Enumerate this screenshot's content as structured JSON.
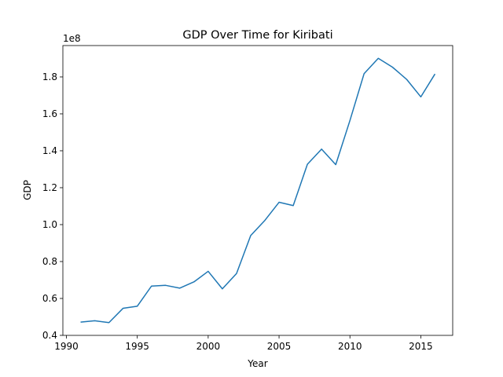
{
  "chart_data": {
    "type": "line",
    "title": "GDP Over Time for Kiribati",
    "xlabel": "Year",
    "ylabel": "GDP",
    "y_offset_label": "1e8",
    "xlim": [
      1989.75,
      2017.25
    ],
    "ylim": [
      0.4,
      1.97
    ],
    "x_ticks": [
      1990,
      1995,
      2000,
      2005,
      2010,
      2015
    ],
    "x_tick_labels": [
      "1990",
      "1995",
      "2000",
      "2005",
      "2010",
      "2015"
    ],
    "y_ticks": [
      0.4,
      0.6,
      0.8,
      1.0,
      1.2,
      1.4,
      1.6,
      1.8
    ],
    "y_tick_labels": [
      "0.4",
      "0.6",
      "0.8",
      "1.0",
      "1.2",
      "1.4",
      "1.6",
      "1.8"
    ],
    "grid": false,
    "series": [
      {
        "color": "#1f77b4",
        "x": [
          1991,
          1992,
          1993,
          1994,
          1995,
          1996,
          1997,
          1998,
          1999,
          2000,
          2001,
          2002,
          2003,
          2004,
          2005,
          2006,
          2007,
          2008,
          2009,
          2010,
          2011,
          2012,
          2013,
          2014,
          2015,
          2016
        ],
        "y": [
          0.472,
          0.479,
          0.469,
          0.547,
          0.558,
          0.667,
          0.671,
          0.656,
          0.69,
          0.747,
          0.652,
          0.735,
          0.941,
          1.023,
          1.121,
          1.103,
          1.327,
          1.409,
          1.325,
          1.564,
          1.818,
          1.901,
          1.853,
          1.787,
          1.692,
          1.816
        ]
      }
    ]
  }
}
